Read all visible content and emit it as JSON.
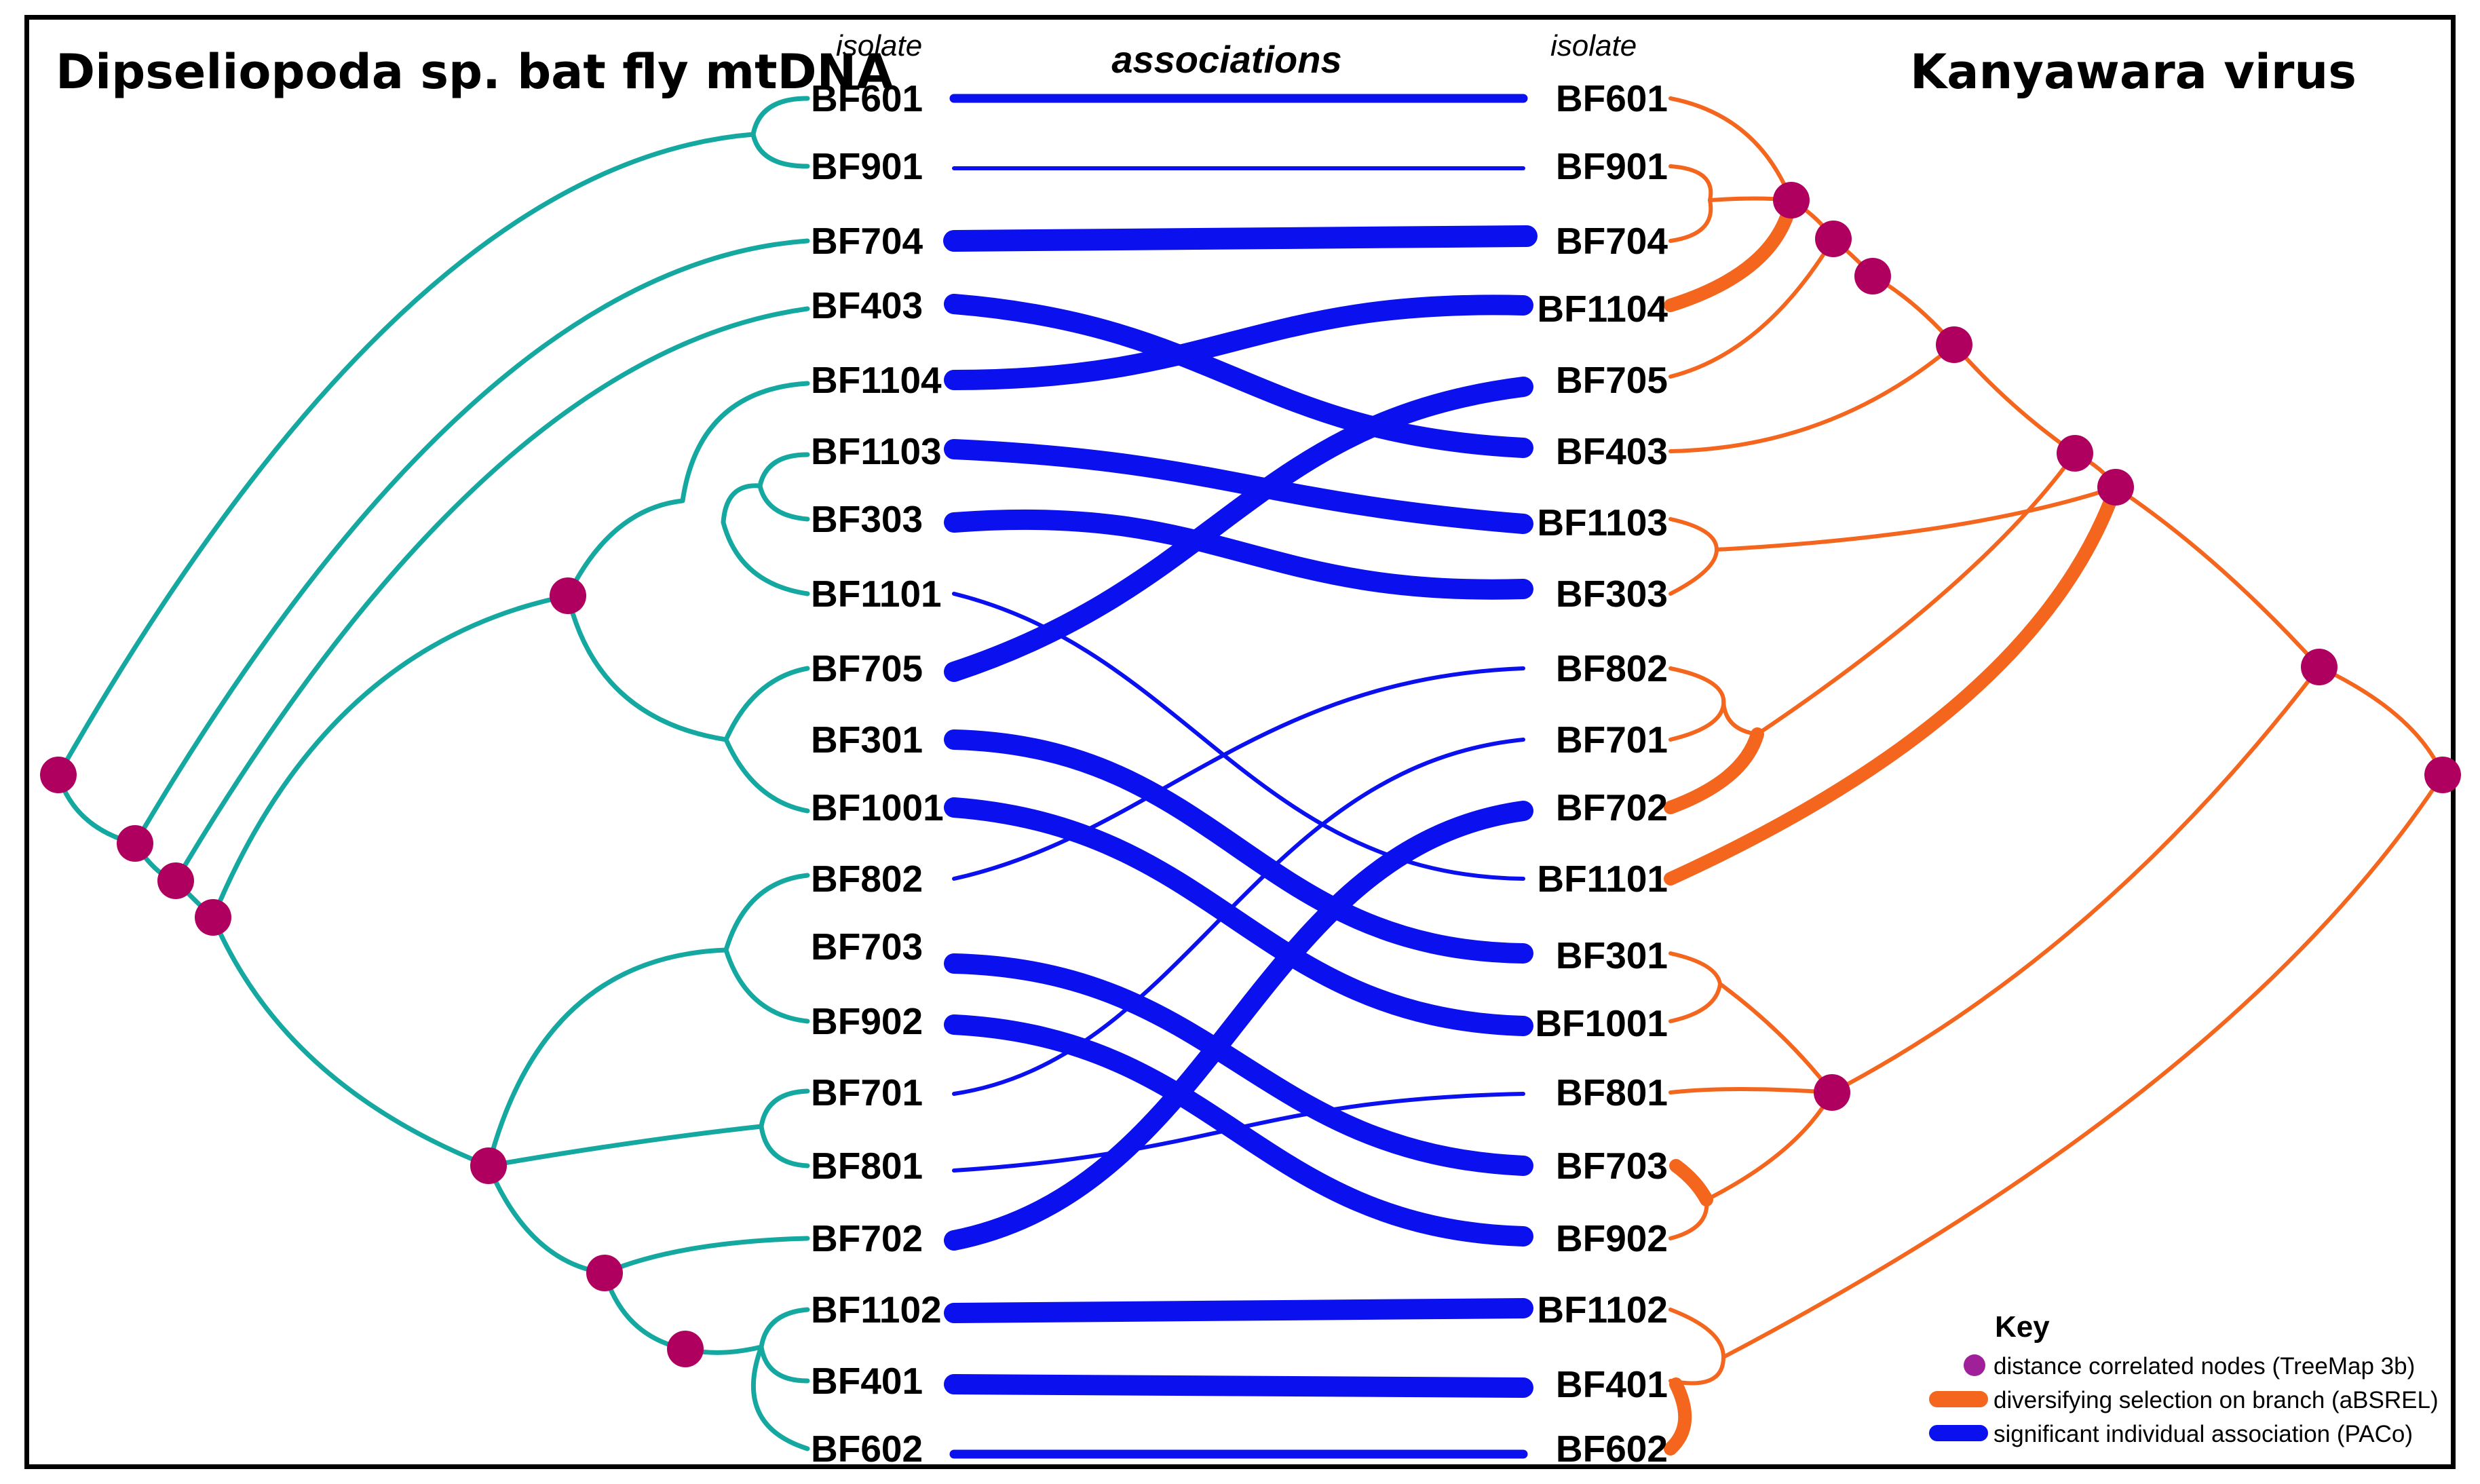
{
  "titles": {
    "left": "Dipseliopoda sp. bat fly mtDNA",
    "right": "Kanyawara virus",
    "isolate_left": "isolate",
    "isolate_right": "isolate",
    "associations": "associations"
  },
  "colors": {
    "host_tree": "#14A8A0",
    "virus_tree": "#F4661E",
    "association": "#0A10EE",
    "node": "#B0005F"
  },
  "left_tips": [
    "BF601",
    "BF901",
    "BF704",
    "BF403",
    "BF1104",
    "BF1103",
    "BF303",
    "BF1101",
    "BF705",
    "BF301",
    "BF1001",
    "BF802",
    "BF703",
    "BF902",
    "BF701",
    "BF801",
    "BF702",
    "BF1102",
    "BF401",
    "BF602"
  ],
  "right_tips": [
    "BF601",
    "BF901",
    "BF704",
    "BF1104",
    "BF705",
    "BF403",
    "BF1103",
    "BF303",
    "BF802",
    "BF701",
    "BF702",
    "BF1101",
    "BF301",
    "BF1001",
    "BF801",
    "BF703",
    "BF902",
    "BF1102",
    "BF401",
    "BF602"
  ],
  "associations": [
    {
      "from": "BF601",
      "to": "BF601",
      "strength": "medium"
    },
    {
      "from": "BF901",
      "to": "BF901",
      "strength": "weak"
    },
    {
      "from": "BF704",
      "to": "BF704",
      "strength": "strong"
    },
    {
      "from": "BF403",
      "to": "BF403",
      "strength": "strong"
    },
    {
      "from": "BF1104",
      "to": "BF1104",
      "strength": "strong"
    },
    {
      "from": "BF1103",
      "to": "BF1103",
      "strength": "strong"
    },
    {
      "from": "BF303",
      "to": "BF303",
      "strength": "strong"
    },
    {
      "from": "BF1101",
      "to": "BF1101",
      "strength": "weak"
    },
    {
      "from": "BF705",
      "to": "BF705",
      "strength": "strong"
    },
    {
      "from": "BF301",
      "to": "BF301",
      "strength": "strong"
    },
    {
      "from": "BF1001",
      "to": "BF1001",
      "strength": "strong"
    },
    {
      "from": "BF802",
      "to": "BF802",
      "strength": "weak"
    },
    {
      "from": "BF703",
      "to": "BF703",
      "strength": "strong"
    },
    {
      "from": "BF902",
      "to": "BF902",
      "strength": "strong"
    },
    {
      "from": "BF701",
      "to": "BF701",
      "strength": "weak"
    },
    {
      "from": "BF801",
      "to": "BF801",
      "strength": "weak"
    },
    {
      "from": "BF702",
      "to": "BF702",
      "strength": "strong"
    },
    {
      "from": "BF1102",
      "to": "BF1102",
      "strength": "strong"
    },
    {
      "from": "BF401",
      "to": "BF401",
      "strength": "strong"
    },
    {
      "from": "BF602",
      "to": "BF602",
      "strength": "medium"
    }
  ],
  "key": {
    "title": "Key",
    "items": [
      {
        "label": "distance correlated nodes (TreeMap 3b)",
        "symbol": "dot",
        "color": "#A0209A"
      },
      {
        "label": "diversifying selection on branch (aBSREL)",
        "symbol": "bar",
        "color": "#F4661E"
      },
      {
        "label": "significant individual association (PACo)",
        "symbol": "bar",
        "color": "#0A10EE"
      }
    ]
  }
}
